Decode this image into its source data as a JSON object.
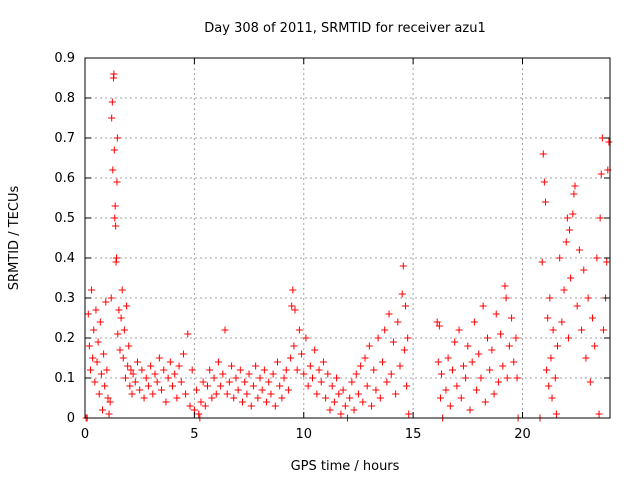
{
  "chart_data": {
    "type": "scatter",
    "title": "Day 308 of 2011, SRMTID for receiver azu1",
    "xlabel": "GPS time / hours",
    "ylabel": "SRMTID / TECUs",
    "xlim": [
      0,
      24
    ],
    "ylim": [
      0,
      0.9
    ],
    "xticks": [
      0,
      5,
      10,
      15,
      20
    ],
    "yticks": [
      0,
      0.1,
      0.2,
      0.3,
      0.4,
      0.5,
      0.6,
      0.7,
      0.8,
      0.9
    ],
    "xtick_labels": [
      "0",
      "5",
      "10",
      "15",
      "20"
    ],
    "ytick_labels": [
      "0",
      "0.1",
      "0.2",
      "0.3",
      "0.4",
      "0.5",
      "0.6",
      "0.7",
      "0.8",
      "0.9"
    ],
    "grid": true,
    "marker": "+",
    "series": [
      {
        "name": "SRMTID",
        "color": "#ff0000",
        "points": [
          [
            0.05,
            0.0
          ],
          [
            0.1,
            0.0
          ],
          [
            0.15,
            0.26
          ],
          [
            0.2,
            0.18
          ],
          [
            0.25,
            0.12
          ],
          [
            0.3,
            0.32
          ],
          [
            0.35,
            0.15
          ],
          [
            0.4,
            0.22
          ],
          [
            0.45,
            0.09
          ],
          [
            0.5,
            0.27
          ],
          [
            0.55,
            0.14
          ],
          [
            0.6,
            0.19
          ],
          [
            0.65,
            0.06
          ],
          [
            0.7,
            0.24
          ],
          [
            0.75,
            0.11
          ],
          [
            0.8,
            0.02
          ],
          [
            0.85,
            0.16
          ],
          [
            0.9,
            0.08
          ],
          [
            0.95,
            0.29
          ],
          [
            1.0,
            0.12
          ],
          [
            1.05,
            0.05
          ],
          [
            1.1,
            0.01
          ],
          [
            1.15,
            0.04
          ],
          [
            1.2,
            0.3
          ],
          [
            1.22,
            0.75
          ],
          [
            1.25,
            0.79
          ],
          [
            1.27,
            0.62
          ],
          [
            1.3,
            0.85
          ],
          [
            1.32,
            0.86
          ],
          [
            1.34,
            0.67
          ],
          [
            1.36,
            0.5
          ],
          [
            1.38,
            0.53
          ],
          [
            1.4,
            0.48
          ],
          [
            1.42,
            0.39
          ],
          [
            1.44,
            0.4
          ],
          [
            1.46,
            0.59
          ],
          [
            1.48,
            0.7
          ],
          [
            1.5,
            0.21
          ],
          [
            1.55,
            0.27
          ],
          [
            1.6,
            0.17
          ],
          [
            1.65,
            0.25
          ],
          [
            1.7,
            0.32
          ],
          [
            1.75,
            0.15
          ],
          [
            1.8,
            0.22
          ],
          [
            1.85,
            0.1
          ],
          [
            1.9,
            0.28
          ],
          [
            1.95,
            0.13
          ],
          [
            2.0,
            0.18
          ],
          [
            2.05,
            0.08
          ],
          [
            2.1,
            0.12
          ],
          [
            2.15,
            0.06
          ],
          [
            2.2,
            0.11
          ],
          [
            2.3,
            0.09
          ],
          [
            2.4,
            0.14
          ],
          [
            2.5,
            0.07
          ],
          [
            2.6,
            0.12
          ],
          [
            2.7,
            0.05
          ],
          [
            2.8,
            0.1
          ],
          [
            2.9,
            0.08
          ],
          [
            3.0,
            0.13
          ],
          [
            3.1,
            0.06
          ],
          [
            3.2,
            0.11
          ],
          [
            3.3,
            0.09
          ],
          [
            3.4,
            0.15
          ],
          [
            3.5,
            0.07
          ],
          [
            3.6,
            0.12
          ],
          [
            3.7,
            0.04
          ],
          [
            3.8,
            0.1
          ],
          [
            3.9,
            0.14
          ],
          [
            4.0,
            0.08
          ],
          [
            4.1,
            0.11
          ],
          [
            4.2,
            0.05
          ],
          [
            4.3,
            0.13
          ],
          [
            4.4,
            0.09
          ],
          [
            4.5,
            0.16
          ],
          [
            4.6,
            0.06
          ],
          [
            4.7,
            0.21
          ],
          [
            4.8,
            0.03
          ],
          [
            4.9,
            0.12
          ],
          [
            5.0,
            0.02
          ],
          [
            5.1,
            0.07
          ],
          [
            5.2,
            0.01
          ],
          [
            5.25,
            0.0
          ],
          [
            5.3,
            0.04
          ],
          [
            5.4,
            0.09
          ],
          [
            5.5,
            0.03
          ],
          [
            5.6,
            0.08
          ],
          [
            5.7,
            0.12
          ],
          [
            5.8,
            0.05
          ],
          [
            5.9,
            0.1
          ],
          [
            6.0,
            0.06
          ],
          [
            6.1,
            0.14
          ],
          [
            6.2,
            0.08
          ],
          [
            6.3,
            0.11
          ],
          [
            6.4,
            0.22
          ],
          [
            6.5,
            0.06
          ],
          [
            6.6,
            0.09
          ],
          [
            6.7,
            0.13
          ],
          [
            6.8,
            0.05
          ],
          [
            6.9,
            0.1
          ],
          [
            7.0,
            0.07
          ],
          [
            7.1,
            0.12
          ],
          [
            7.2,
            0.04
          ],
          [
            7.3,
            0.09
          ],
          [
            7.4,
            0.06
          ],
          [
            7.5,
            0.11
          ],
          [
            7.6,
            0.03
          ],
          [
            7.7,
            0.08
          ],
          [
            7.8,
            0.13
          ],
          [
            7.9,
            0.05
          ],
          [
            8.0,
            0.1
          ],
          [
            8.1,
            0.07
          ],
          [
            8.2,
            0.12
          ],
          [
            8.3,
            0.04
          ],
          [
            8.4,
            0.09
          ],
          [
            8.5,
            0.06
          ],
          [
            8.6,
            0.11
          ],
          [
            8.7,
            0.03
          ],
          [
            8.8,
            0.14
          ],
          [
            8.9,
            0.08
          ],
          [
            9.0,
            0.05
          ],
          [
            9.1,
            0.1
          ],
          [
            9.2,
            0.12
          ],
          [
            9.3,
            0.07
          ],
          [
            9.4,
            0.15
          ],
          [
            9.45,
            0.28
          ],
          [
            9.5,
            0.32
          ],
          [
            9.55,
            0.18
          ],
          [
            9.6,
            0.27
          ],
          [
            9.7,
            0.12
          ],
          [
            9.8,
            0.22
          ],
          [
            9.9,
            0.16
          ],
          [
            10.0,
            0.11
          ],
          [
            10.1,
            0.2
          ],
          [
            10.2,
            0.08
          ],
          [
            10.3,
            0.13
          ],
          [
            10.4,
            0.1
          ],
          [
            10.5,
            0.17
          ],
          [
            10.6,
            0.06
          ],
          [
            10.7,
            0.12
          ],
          [
            10.8,
            0.09
          ],
          [
            10.9,
            0.14
          ],
          [
            11.0,
            0.05
          ],
          [
            11.1,
            0.11
          ],
          [
            11.2,
            0.02
          ],
          [
            11.3,
            0.08
          ],
          [
            11.4,
            0.04
          ],
          [
            11.5,
            0.1
          ],
          [
            11.6,
            0.06
          ],
          [
            11.7,
            0.01
          ],
          [
            11.8,
            0.07
          ],
          [
            11.9,
            0.03
          ],
          [
            12.0,
            0.0
          ],
          [
            12.1,
            0.05
          ],
          [
            12.2,
            0.09
          ],
          [
            12.3,
            0.02
          ],
          [
            12.4,
            0.11
          ],
          [
            12.5,
            0.06
          ],
          [
            12.6,
            0.13
          ],
          [
            12.7,
            0.04
          ],
          [
            12.8,
            0.15
          ],
          [
            12.9,
            0.08
          ],
          [
            13.0,
            0.18
          ],
          [
            13.1,
            0.03
          ],
          [
            13.2,
            0.12
          ],
          [
            13.3,
            0.07
          ],
          [
            13.4,
            0.2
          ],
          [
            13.5,
            0.05
          ],
          [
            13.6,
            0.14
          ],
          [
            13.7,
            0.22
          ],
          [
            13.8,
            0.09
          ],
          [
            13.9,
            0.26
          ],
          [
            14.0,
            0.11
          ],
          [
            14.1,
            0.19
          ],
          [
            14.2,
            0.06
          ],
          [
            14.3,
            0.24
          ],
          [
            14.4,
            0.13
          ],
          [
            14.5,
            0.31
          ],
          [
            14.55,
            0.38
          ],
          [
            14.6,
            0.17
          ],
          [
            14.65,
            0.28
          ],
          [
            14.7,
            0.08
          ],
          [
            14.75,
            0.2
          ],
          [
            14.8,
            0.01
          ],
          [
            16.1,
            0.24
          ],
          [
            16.15,
            0.14
          ],
          [
            16.2,
            0.23
          ],
          [
            16.25,
            0.05
          ],
          [
            16.3,
            0.11
          ],
          [
            16.35,
            0.0
          ],
          [
            16.5,
            0.07
          ],
          [
            16.6,
            0.15
          ],
          [
            16.7,
            0.03
          ],
          [
            16.8,
            0.12
          ],
          [
            16.9,
            0.19
          ],
          [
            17.0,
            0.08
          ],
          [
            17.1,
            0.22
          ],
          [
            17.2,
            0.05
          ],
          [
            17.3,
            0.13
          ],
          [
            17.4,
            0.1
          ],
          [
            17.5,
            0.18
          ],
          [
            17.6,
            0.02
          ],
          [
            17.7,
            0.14
          ],
          [
            17.8,
            0.24
          ],
          [
            17.9,
            0.07
          ],
          [
            18.0,
            0.16
          ],
          [
            18.1,
            0.1
          ],
          [
            18.2,
            0.28
          ],
          [
            18.3,
            0.04
          ],
          [
            18.4,
            0.2
          ],
          [
            18.5,
            0.12
          ],
          [
            18.6,
            0.17
          ],
          [
            18.7,
            0.06
          ],
          [
            18.8,
            0.26
          ],
          [
            18.9,
            0.09
          ],
          [
            19.0,
            0.21
          ],
          [
            19.1,
            0.13
          ],
          [
            19.2,
            0.33
          ],
          [
            19.25,
            0.3
          ],
          [
            19.3,
            0.1
          ],
          [
            19.4,
            0.18
          ],
          [
            19.5,
            0.25
          ],
          [
            19.6,
            0.14
          ],
          [
            19.7,
            0.2
          ],
          [
            19.75,
            0.1
          ],
          [
            19.8,
            0.0
          ],
          [
            20.8,
            0.0
          ],
          [
            20.9,
            0.39
          ],
          [
            20.95,
            0.66
          ],
          [
            21.0,
            0.59
          ],
          [
            21.05,
            0.54
          ],
          [
            21.1,
            0.12
          ],
          [
            21.15,
            0.25
          ],
          [
            21.2,
            0.08
          ],
          [
            21.25,
            0.3
          ],
          [
            21.3,
            0.15
          ],
          [
            21.35,
            0.05
          ],
          [
            21.4,
            0.22
          ],
          [
            21.5,
            0.1
          ],
          [
            21.55,
            0.01
          ],
          [
            21.6,
            0.18
          ],
          [
            21.7,
            0.4
          ],
          [
            21.8,
            0.24
          ],
          [
            21.9,
            0.32
          ],
          [
            22.0,
            0.44
          ],
          [
            22.05,
            0.5
          ],
          [
            22.1,
            0.2
          ],
          [
            22.15,
            0.47
          ],
          [
            22.2,
            0.35
          ],
          [
            22.3,
            0.51
          ],
          [
            22.35,
            0.56
          ],
          [
            22.4,
            0.58
          ],
          [
            22.5,
            0.28
          ],
          [
            22.6,
            0.42
          ],
          [
            22.7,
            0.22
          ],
          [
            22.8,
            0.37
          ],
          [
            22.9,
            0.15
          ],
          [
            23.0,
            0.3
          ],
          [
            23.1,
            0.09
          ],
          [
            23.2,
            0.25
          ],
          [
            23.3,
            0.18
          ],
          [
            23.4,
            0.4
          ],
          [
            23.5,
            0.01
          ],
          [
            23.55,
            0.5
          ],
          [
            23.6,
            0.61
          ],
          [
            23.65,
            0.7
          ],
          [
            23.7,
            0.22
          ],
          [
            23.8,
            0.3
          ],
          [
            23.85,
            0.39
          ],
          [
            23.9,
            0.62
          ],
          [
            23.95,
            0.69
          ]
        ]
      }
    ]
  }
}
